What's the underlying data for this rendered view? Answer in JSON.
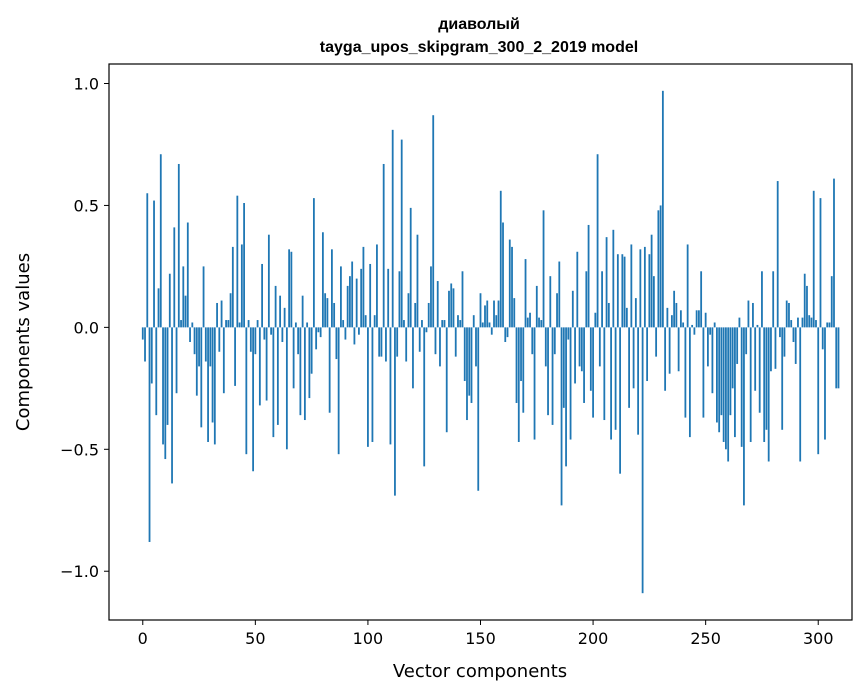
{
  "chart_data": {
    "type": "bar",
    "title_lines": [
      "диаволый",
      "tayga_upos_skipgram_300_2_2019 model"
    ],
    "xlabel": "Vector components",
    "ylabel": "Components values",
    "xlim": [
      -15,
      315
    ],
    "ylim": [
      -1.2,
      1.08
    ],
    "xticks": [
      {
        "value": 0,
        "label": "0"
      },
      {
        "value": 50,
        "label": "50"
      },
      {
        "value": 100,
        "label": "100"
      },
      {
        "value": 150,
        "label": "150"
      },
      {
        "value": 200,
        "label": "200"
      },
      {
        "value": 250,
        "label": "250"
      },
      {
        "value": 300,
        "label": "300"
      }
    ],
    "yticks": [
      {
        "value": -1.0,
        "label": "−1.0"
      },
      {
        "value": -0.5,
        "label": "−0.5"
      },
      {
        "value": 0.0,
        "label": "0.0"
      },
      {
        "value": 0.5,
        "label": "0.5"
      },
      {
        "value": 1.0,
        "label": "1.0"
      }
    ],
    "grid": false,
    "bar_color": "#1f77b4",
    "bar_width": 0.8,
    "values": [
      -0.05,
      -0.14,
      0.55,
      -0.88,
      -0.23,
      0.52,
      -0.36,
      0.16,
      0.71,
      -0.48,
      -0.54,
      -0.4,
      0.22,
      -0.64,
      0.41,
      -0.27,
      0.67,
      0.03,
      0.25,
      0.13,
      0.43,
      -0.06,
      0.02,
      -0.11,
      -0.28,
      -0.16,
      -0.41,
      0.25,
      -0.14,
      -0.47,
      -0.16,
      -0.39,
      -0.48,
      0.1,
      -0.1,
      0.11,
      -0.27,
      0.03,
      0.03,
      0.14,
      0.33,
      -0.24,
      0.54,
      0.02,
      0.34,
      0.51,
      -0.52,
      0.03,
      -0.1,
      -0.59,
      -0.11,
      0.03,
      -0.32,
      0.26,
      -0.05,
      -0.3,
      0.38,
      -0.03,
      -0.45,
      0.17,
      -0.4,
      0.13,
      -0.06,
      0.08,
      -0.5,
      0.32,
      0.31,
      -0.25,
      0.02,
      -0.11,
      -0.36,
      0.13,
      -0.38,
      0.02,
      -0.29,
      -0.19,
      0.53,
      -0.09,
      -0.02,
      -0.04,
      0.39,
      0.14,
      0.12,
      -0.35,
      0.32,
      0.1,
      -0.13,
      -0.52,
      0.25,
      0.03,
      -0.05,
      0.17,
      0.21,
      0.27,
      -0.07,
      0.2,
      -0.03,
      0.24,
      0.33,
      0.05,
      -0.49,
      0.26,
      -0.47,
      0.05,
      0.34,
      -0.12,
      -0.12,
      0.67,
      -0.14,
      0.24,
      -0.48,
      0.81,
      -0.69,
      -0.12,
      0.23,
      0.77,
      0.03,
      -0.14,
      0.14,
      0.49,
      -0.25,
      0.1,
      0.38,
      -0.1,
      0.03,
      -0.57,
      -0.02,
      0.1,
      0.25,
      0.87,
      -0.11,
      0.19,
      -0.16,
      0.03,
      0.03,
      -0.43,
      0.15,
      0.18,
      0.16,
      -0.12,
      0.05,
      0.03,
      0.23,
      -0.22,
      -0.38,
      -0.28,
      -0.31,
      0.05,
      -0.16,
      -0.67,
      0.14,
      0.02,
      0.09,
      0.11,
      0.02,
      -0.03,
      0.11,
      0.05,
      0.11,
      0.56,
      0.43,
      -0.06,
      -0.04,
      0.36,
      0.33,
      0.12,
      -0.31,
      -0.47,
      -0.22,
      -0.35,
      0.28,
      0.04,
      0.06,
      -0.11,
      -0.46,
      0.17,
      0.04,
      0.03,
      0.48,
      -0.16,
      -0.36,
      0.21,
      -0.4,
      -0.11,
      0.14,
      0.27,
      -0.73,
      -0.33,
      -0.57,
      -0.05,
      -0.46,
      0.15,
      -0.23,
      0.31,
      -0.16,
      -0.18,
      -0.31,
      0.23,
      0.42,
      -0.26,
      -0.37,
      0.06,
      0.71,
      -0.16,
      0.23,
      -0.38,
      0.37,
      0.1,
      -0.46,
      0.4,
      -0.42,
      0.3,
      -0.6,
      0.3,
      0.29,
      0.08,
      -0.33,
      0.34,
      -0.25,
      0.12,
      -0.44,
      0.32,
      -1.09,
      0.33,
      -0.22,
      0.3,
      0.38,
      0.21,
      -0.12,
      0.48,
      0.5,
      0.97,
      -0.26,
      0.08,
      -0.19,
      0.05,
      0.15,
      0.1,
      -0.18,
      0.07,
      0.02,
      -0.37,
      0.34,
      -0.45,
      0.01,
      -0.03,
      0.07,
      0.07,
      0.23,
      -0.37,
      0.06,
      -0.16,
      -0.03,
      -0.27,
      0.02,
      -0.39,
      -0.43,
      -0.36,
      -0.47,
      -0.5,
      -0.55,
      -0.36,
      -0.25,
      -0.45,
      -0.15,
      0.04,
      -0.49,
      -0.73,
      -0.11,
      0.11,
      -0.47,
      0.1,
      -0.26,
      0.01,
      -0.35,
      0.23,
      -0.47,
      -0.42,
      -0.55,
      -0.18,
      0.23,
      -0.17,
      0.6,
      -0.04,
      -0.42,
      -0.12,
      0.11,
      0.1,
      0.03,
      -0.06,
      -0.15,
      0.04,
      -0.55,
      0.04,
      0.22,
      0.17,
      0.05,
      0.04,
      0.56,
      0.03,
      -0.52,
      0.53,
      -0.09,
      -0.46,
      0.02,
      0.02,
      0.21,
      0.61,
      -0.25,
      -0.25
    ]
  }
}
